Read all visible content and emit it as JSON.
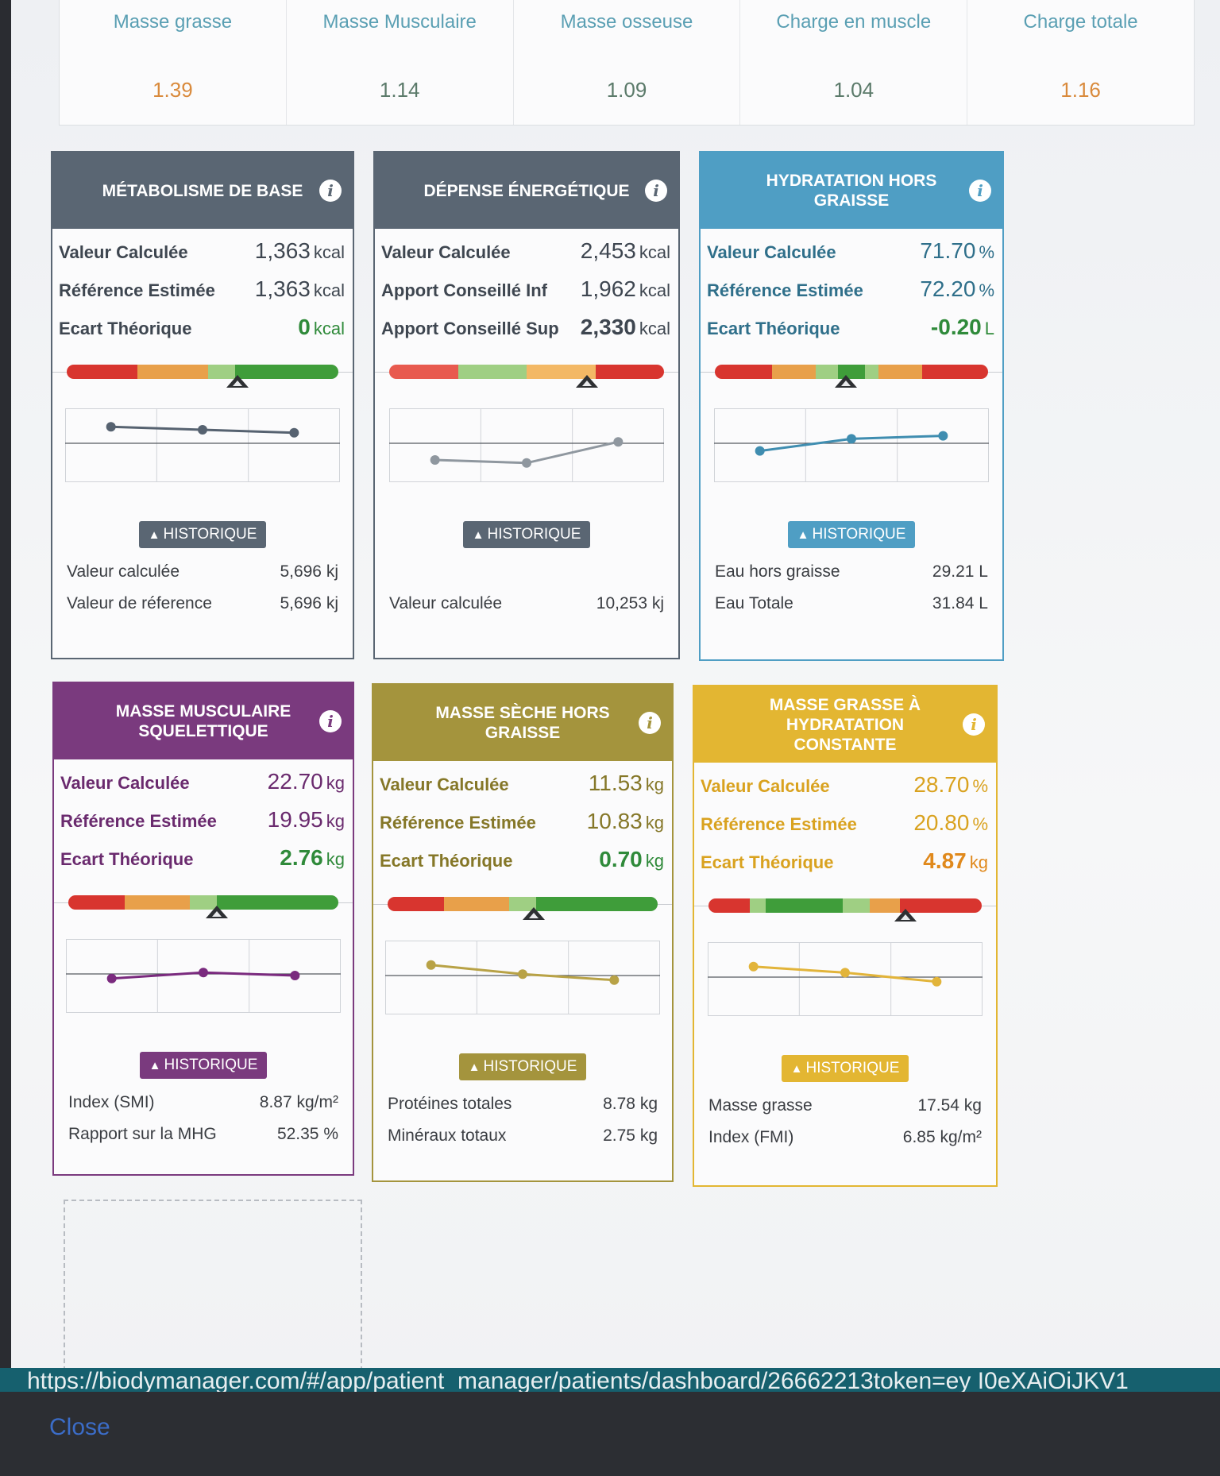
{
  "ratios": [
    {
      "label": "Masse grasse",
      "value": "1.39",
      "color": "#d98a3c"
    },
    {
      "label": "Masse Musculaire",
      "value": "1.14",
      "color": "#5b7a6a"
    },
    {
      "label": "Masse osseuse",
      "value": "1.09",
      "color": "#5b7a6a"
    },
    {
      "label": "Charge en muscle",
      "value": "1.04",
      "color": "#5b7a6a"
    },
    {
      "label": "Charge totale",
      "value": "1.16",
      "color": "#d98a3c"
    }
  ],
  "history_label": "HISTORIQUE",
  "info_glyph": "i",
  "cards": [
    {
      "title": "MÉTABOLISME DE BASE",
      "head_color": "#5a6673",
      "label_color": "#3e4650",
      "rows": [
        {
          "label": "Valeur Calculée",
          "value": "1,363",
          "unit": "kcal",
          "color": "#3e4650"
        },
        {
          "label": "Référence Estimée",
          "value": "1,363",
          "unit": "kcal",
          "color": "#3e4650"
        },
        {
          "label": "Ecart Théorique",
          "value": "0",
          "unit": "kcal",
          "color": "#2f8a3a"
        }
      ],
      "gauge": {
        "segments": [
          [
            "#d8352f",
            26
          ],
          [
            "#e8a04a",
            26
          ],
          [
            "#9fcf83",
            10
          ],
          [
            "#3f9d3a",
            38
          ]
        ],
        "marker_fraction": 0.63
      },
      "trend": {
        "color": "#566270",
        "values": [
          3.1,
          3.0,
          2.9
        ]
      },
      "footer": [
        {
          "label": "Valeur calculée",
          "value": "5,696 kj"
        },
        {
          "label": "Valeur de réference",
          "value": "5,696 kj"
        }
      ]
    },
    {
      "title": "DÉPENSE ÉNERGÉTIQUE",
      "head_color": "#5a6673",
      "label_color": "#3e4650",
      "rows": [
        {
          "label": "Valeur Calculée",
          "value": "2,453",
          "unit": "kcal",
          "color": "#3e4650"
        },
        {
          "label": "Apport Conseillé Inf",
          "value": "1,962",
          "unit": "kcal",
          "color": "#3e4650"
        },
        {
          "label": "Apport Conseillé Sup",
          "value": "2,330",
          "unit": "kcal",
          "color": "#3e4650"
        }
      ],
      "gauge": {
        "segments": [
          [
            "#e85a4f",
            25
          ],
          [
            "#9fcf83",
            25
          ],
          [
            "#f3b865",
            25
          ],
          [
            "#d8352f",
            25
          ]
        ],
        "marker_fraction": 0.72
      },
      "trend": {
        "color": "#8f979f",
        "values": [
          2.0,
          1.9,
          2.6
        ]
      },
      "footer": [
        {
          "label": "Valeur calculée",
          "value": "10,253 kj"
        }
      ]
    },
    {
      "title": "HYDRATATION HORS GRAISSE",
      "head_color": "#4f9ec4",
      "label_color": "#2f6f8a",
      "rows": [
        {
          "label": "Valeur Calculée",
          "value": "71.70",
          "unit": "%",
          "color": "#2f6f8a"
        },
        {
          "label": "Référence Estimée",
          "value": "72.20",
          "unit": "%",
          "color": "#2f6f8a"
        },
        {
          "label": "Ecart Théorique",
          "value": "-0.20",
          "unit": "L",
          "color": "#2f8a3a"
        }
      ],
      "gauge": {
        "segments": [
          [
            "#d8352f",
            21
          ],
          [
            "#e8a04a",
            16
          ],
          [
            "#9fcf83",
            8
          ],
          [
            "#3f9d3a",
            10
          ],
          [
            "#9fcf83",
            5
          ],
          [
            "#e8a04a",
            16
          ],
          [
            "#d8352f",
            24
          ]
        ],
        "marker_fraction": 0.48
      },
      "trend": {
        "color": "#3f8db0",
        "values": [
          2.3,
          2.7,
          2.8
        ]
      },
      "footer": [
        {
          "label": "Eau hors graisse",
          "value": "29.21 L"
        },
        {
          "label": "Eau Totale",
          "value": "31.84 L"
        }
      ]
    },
    {
      "title": "MASSE MUSCULAIRE SQUELETTIQUE",
      "head_color": "#7a3a7e",
      "label_color": "#6a2a6e",
      "rows": [
        {
          "label": "Valeur Calculée",
          "value": "22.70",
          "unit": "kg",
          "color": "#6a2a6e"
        },
        {
          "label": "Référence Estimée",
          "value": "19.95",
          "unit": "kg",
          "color": "#6a2a6e"
        },
        {
          "label": "Ecart Théorique",
          "value": "2.76",
          "unit": "kg",
          "color": "#2f8a3a"
        }
      ],
      "gauge": {
        "segments": [
          [
            "#d8352f",
            21
          ],
          [
            "#e8a04a",
            24
          ],
          [
            "#9fcf83",
            10
          ],
          [
            "#3f9d3a",
            45
          ]
        ],
        "marker_fraction": 0.55
      },
      "trend": {
        "color": "#7a2a7e",
        "values": [
          2.4,
          2.6,
          2.5
        ]
      },
      "footer": [
        {
          "label": "Index (SMI)",
          "value": "8.87 kg/m²"
        },
        {
          "label": "Rapport sur la MHG",
          "value": "52.35 %"
        }
      ]
    },
    {
      "title": "MASSE SÈCHE HORS GRAISSE",
      "head_color": "#a4943d",
      "label_color": "#857728",
      "rows": [
        {
          "label": "Valeur Calculée",
          "value": "11.53",
          "unit": "kg",
          "color": "#857728"
        },
        {
          "label": "Référence Estimée",
          "value": "10.83",
          "unit": "kg",
          "color": "#857728"
        },
        {
          "label": "Ecart Théorique",
          "value": "0.70",
          "unit": "kg",
          "color": "#2f8a3a"
        }
      ],
      "gauge": {
        "segments": [
          [
            "#d8352f",
            21
          ],
          [
            "#e8a04a",
            24
          ],
          [
            "#9fcf83",
            10
          ],
          [
            "#3f9d3a",
            45
          ]
        ],
        "marker_fraction": 0.54
      },
      "trend": {
        "color": "#b8a246",
        "values": [
          2.9,
          2.6,
          2.4
        ]
      },
      "footer": [
        {
          "label": "Protéines totales",
          "value": "8.78 kg"
        },
        {
          "label": "Minéraux totaux",
          "value": "2.75 kg"
        }
      ]
    },
    {
      "title": "MASSE GRASSE À HYDRATATION CONSTANTE",
      "head_color": "#e3b632",
      "label_color": "#d9a21f",
      "rows": [
        {
          "label": "Valeur Calculée",
          "value": "28.70",
          "unit": "%",
          "color": "#d9a21f"
        },
        {
          "label": "Référence Estimée",
          "value": "20.80",
          "unit": "%",
          "color": "#d9a21f"
        },
        {
          "label": "Ecart Théorique",
          "value": "4.87",
          "unit": "kg",
          "color": "#e0891c"
        }
      ],
      "gauge": {
        "segments": [
          [
            "#d8352f",
            15
          ],
          [
            "#9fcf83",
            6
          ],
          [
            "#3f9d3a",
            28
          ],
          [
            "#9fcf83",
            10
          ],
          [
            "#e8a04a",
            11
          ],
          [
            "#d8352f",
            30
          ]
        ],
        "marker_fraction": 0.72
      },
      "trend": {
        "color": "#e2b43a",
        "values": [
          2.9,
          2.7,
          2.4
        ]
      },
      "footer": [
        {
          "label": "Masse grasse",
          "value": "17.54 kg"
        },
        {
          "label": "Index (FMI)",
          "value": "6.85 kg/m²"
        }
      ]
    }
  ],
  "url_text": "https://biodymanager.com/#/app/patient_manager/patients/dashboard/26662213token=ey I0eXAiOiJKV1",
  "close_label": "Close"
}
